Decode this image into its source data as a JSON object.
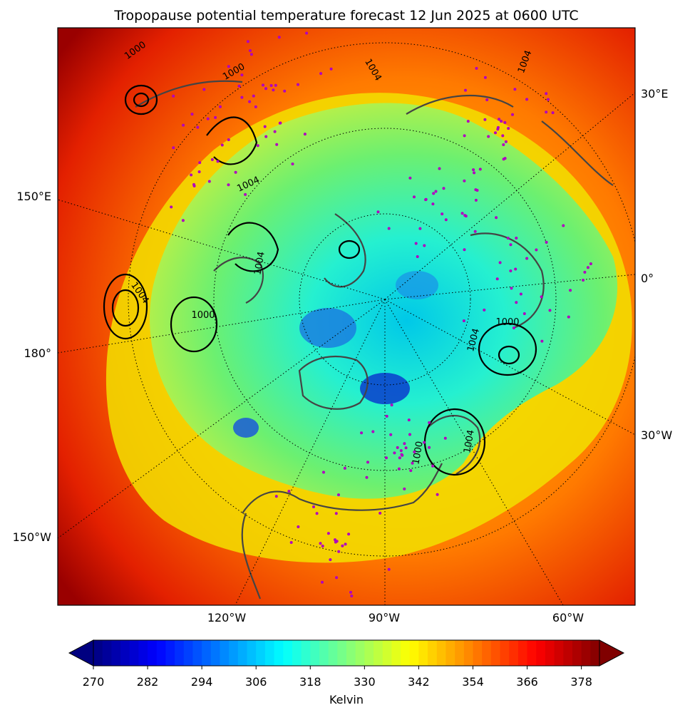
{
  "title": "Tropopause potential temperature forecast 12 Jun 2025 at 0600 UTC",
  "map": {
    "projection": "north-polar-stereographic",
    "graticule_labels": {
      "left": [
        "150°E",
        "180°",
        "150°W"
      ],
      "right": [
        "30°E",
        "0°",
        "30°W"
      ],
      "bottom": [
        "120°W",
        "90°W",
        "60°W"
      ]
    },
    "isobar_labels": [
      "1000",
      "1000",
      "1004",
      "1004",
      "1004",
      "1000",
      "1004",
      "1004",
      "1000",
      "1000",
      "1004",
      "1004"
    ],
    "colors": {
      "warm_field": "#cc1100",
      "coastline": "#444444",
      "contour": "#000000",
      "station_marker": "#b000c0"
    }
  },
  "colorbar": {
    "label": "Kelvin",
    "min": 270,
    "max": 382,
    "step": 2,
    "extend": "both",
    "colormap": "jet",
    "ticks": [
      "270",
      "282",
      "294",
      "306",
      "318",
      "330",
      "342",
      "354",
      "366",
      "378"
    ]
  }
}
